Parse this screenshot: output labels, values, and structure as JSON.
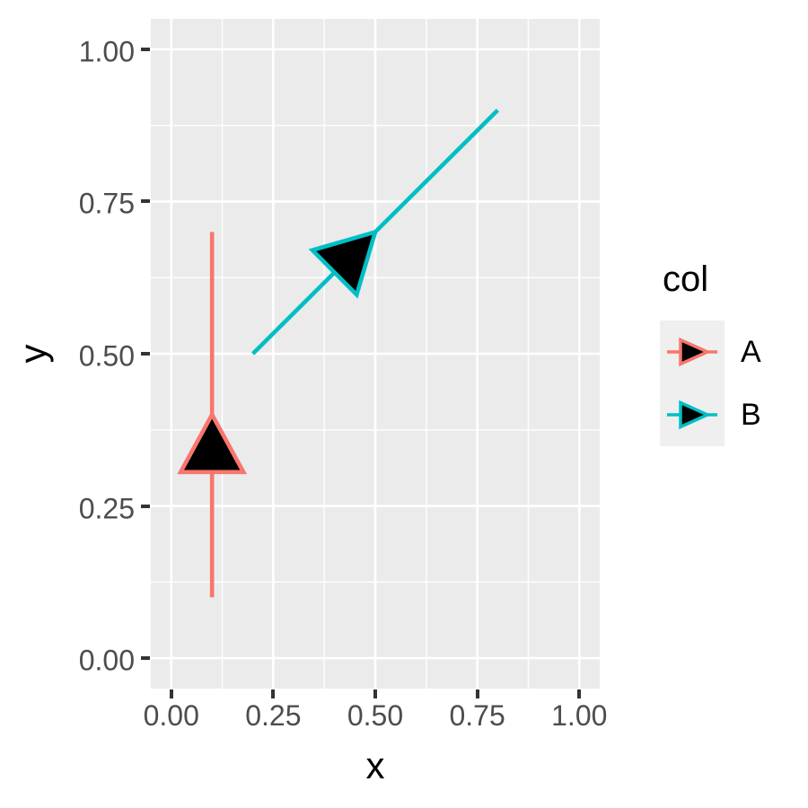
{
  "chart_data": {
    "type": "line",
    "subtype": "segments-with-midpoint-arrowheads",
    "title": "",
    "xlabel": "x",
    "ylabel": "y",
    "xlim": [
      -0.05,
      1.05
    ],
    "ylim": [
      -0.05,
      1.05
    ],
    "x_tick_values": [
      0,
      0.25,
      0.5,
      0.75,
      1
    ],
    "x_tick_labels": [
      "0.00",
      "0.25",
      "0.50",
      "0.75",
      "1.00"
    ],
    "y_tick_values": [
      0,
      0.25,
      0.5,
      0.75,
      1
    ],
    "y_tick_labels": [
      "0.00",
      "0.25",
      "0.50",
      "0.75",
      "1.00"
    ],
    "minor_x": [
      0.125,
      0.375,
      0.625,
      0.875
    ],
    "minor_y": [
      0.125,
      0.375,
      0.625,
      0.875
    ],
    "grid": "on",
    "series": [
      {
        "name": "A",
        "color": "#F8766D",
        "x": [
          0.1,
          0.1
        ],
        "y": [
          0.1,
          0.7
        ],
        "arrow": "middle"
      },
      {
        "name": "B",
        "color": "#00BFC4",
        "x": [
          0.2,
          0.8
        ],
        "y": [
          0.5,
          0.9
        ],
        "arrow": "middle"
      }
    ],
    "arrow_style": {
      "fill": "#000000",
      "position": "midpoint",
      "angle_deg": 30
    },
    "legend": {
      "title": "col",
      "position": "right",
      "entries": [
        {
          "label": "A",
          "color": "#F8766D"
        },
        {
          "label": "B",
          "color": "#00BFC4"
        }
      ]
    }
  },
  "colors": {
    "figure_bg": "#FFFFFF",
    "panel_bg": "#EBEBEB",
    "grid": "#FFFFFF",
    "tick_mark": "#333333",
    "tick_label": "#4D4D4D",
    "title_text": "#000000",
    "legend_key_bg": "#EFEFEF",
    "arrow_fill": "#000000"
  }
}
